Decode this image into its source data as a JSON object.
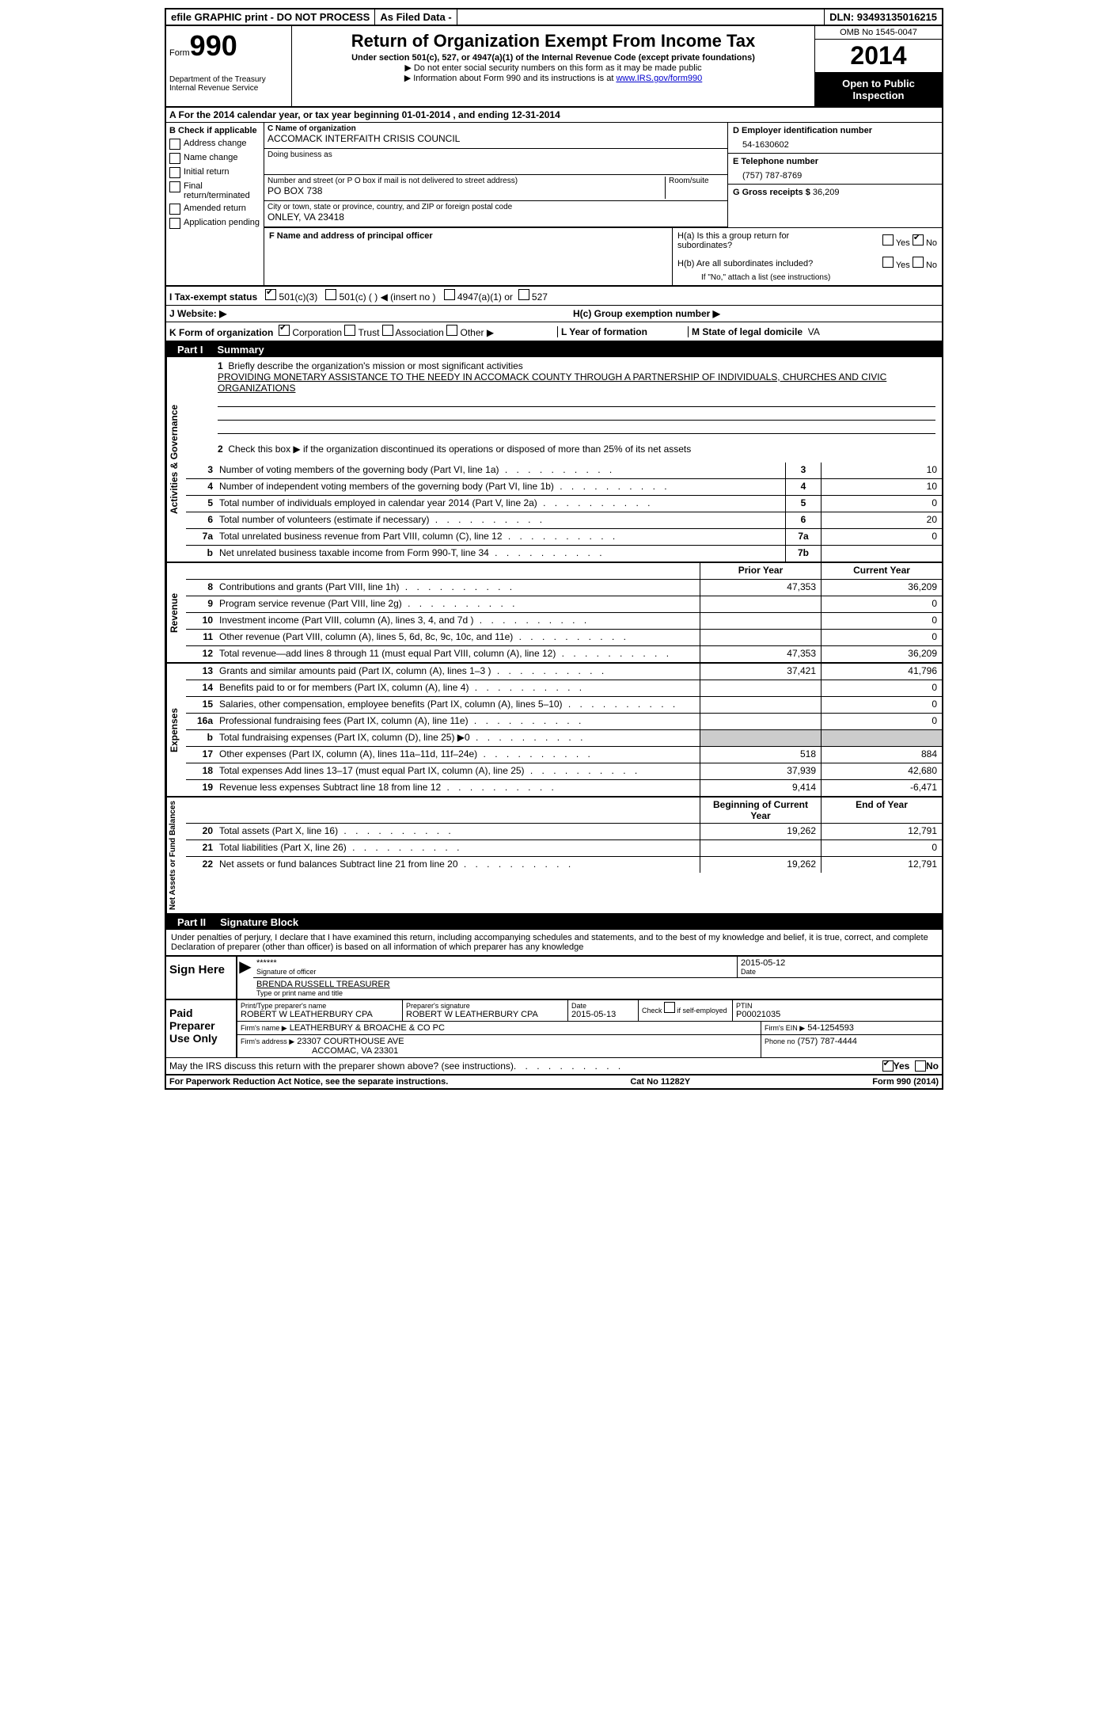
{
  "topbar": {
    "efile": "efile GRAPHIC print - DO NOT PROCESS",
    "asfiled": "As Filed Data -",
    "dln_label": "DLN:",
    "dln": "93493135016215"
  },
  "header": {
    "form_label": "Form",
    "form_num": "990",
    "dept1": "Department of the Treasury",
    "dept2": "Internal Revenue Service",
    "title": "Return of Organization Exempt From Income Tax",
    "subtitle": "Under section 501(c), 527, or 4947(a)(1) of the Internal Revenue Code (except private foundations)",
    "note1": "▶ Do not enter social security numbers on this form as it may be made public",
    "note2_pre": "▶ Information about Form 990 and its instructions is at ",
    "note2_link": "www.IRS.gov/form990",
    "omb": "OMB No 1545-0047",
    "year": "2014",
    "inspection": "Open to Public Inspection"
  },
  "sectionA": {
    "text": "A  For the 2014 calendar year, or tax year beginning 01-01-2014    , and ending 12-31-2014"
  },
  "colB": {
    "label": "B  Check if applicable",
    "items": [
      "Address change",
      "Name change",
      "Initial return",
      "Final return/terminated",
      "Amended return",
      "Application pending"
    ]
  },
  "colC": {
    "name_label": "C Name of organization",
    "name": "ACCOMACK INTERFAITH CRISIS COUNCIL",
    "dba_label": "Doing business as",
    "dba": "",
    "street_label": "Number and street (or P O  box if mail is not delivered to street address)",
    "room_label": "Room/suite",
    "street": "PO BOX 738",
    "city_label": "City or town, state or province, country, and ZIP or foreign postal code",
    "city": "ONLEY, VA  23418",
    "f_label": "F   Name and address of principal officer"
  },
  "colD": {
    "ein_label": "D Employer identification number",
    "ein": "54-1630602",
    "tel_label": "E Telephone number",
    "tel": "(757) 787-8769",
    "gross_label": "G Gross receipts $",
    "gross": "36,209"
  },
  "h": {
    "ha_label": "H(a)  Is this a group return for subordinates?",
    "hb_label": "H(b)  Are all subordinates included?",
    "hb_note": "If \"No,\" attach a list  (see instructions)",
    "hc_label": "H(c)   Group exemption number ▶",
    "yes": "Yes",
    "no": "No"
  },
  "i": {
    "label": "I   Tax-exempt status",
    "opt1": "501(c)(3)",
    "opt2": "501(c) (   ) ◀ (insert no )",
    "opt3": "4947(a)(1) or",
    "opt4": "527"
  },
  "j": {
    "label": "J   Website: ▶"
  },
  "k": {
    "label": "K Form of organization",
    "opts": [
      "Corporation",
      "Trust",
      "Association",
      "Other ▶"
    ],
    "l_label": "L Year of formation",
    "m_label": "M State of legal domicile",
    "m_val": "VA"
  },
  "part1": {
    "label": "Part I",
    "title": "Summary",
    "l1_label": "Briefly describe the organization's mission or most significant activities",
    "l1_text": "PROVIDING MONETARY ASSISTANCE TO THE NEEDY IN ACCOMACK COUNTY THROUGH A PARTNERSHIP OF INDIVIDUALS, CHURCHES AND CIVIC ORGANIZATIONS",
    "l2": "Check this box ▶      if the organization discontinued its operations or disposed of more than 25% of its net assets",
    "vtab1": "Activities & Governance",
    "vtab2": "Revenue",
    "vtab3": "Expenses",
    "vtab4": "Net Assets or Fund Balances",
    "lines_gov": [
      {
        "n": "3",
        "d": "Number of voting members of the governing body (Part VI, line 1a)",
        "box": "3",
        "v": "10"
      },
      {
        "n": "4",
        "d": "Number of independent voting members of the governing body (Part VI, line 1b)",
        "box": "4",
        "v": "10"
      },
      {
        "n": "5",
        "d": "Total number of individuals employed in calendar year 2014 (Part V, line 2a)",
        "box": "5",
        "v": "0"
      },
      {
        "n": "6",
        "d": "Total number of volunteers (estimate if necessary)",
        "box": "6",
        "v": "20"
      },
      {
        "n": "7a",
        "d": "Total unrelated business revenue from Part VIII, column (C), line 12",
        "box": "7a",
        "v": "0"
      },
      {
        "n": "b",
        "d": "Net unrelated business taxable income from Form 990-T, line 34",
        "box": "7b",
        "v": ""
      }
    ],
    "col_prior": "Prior Year",
    "col_curr": "Current Year",
    "lines_rev": [
      {
        "n": "8",
        "d": "Contributions and grants (Part VIII, line 1h)",
        "p": "47,353",
        "c": "36,209"
      },
      {
        "n": "9",
        "d": "Program service revenue (Part VIII, line 2g)",
        "p": "",
        "c": "0"
      },
      {
        "n": "10",
        "d": "Investment income (Part VIII, column (A), lines 3, 4, and 7d )",
        "p": "",
        "c": "0"
      },
      {
        "n": "11",
        "d": "Other revenue (Part VIII, column (A), lines 5, 6d, 8c, 9c, 10c, and 11e)",
        "p": "",
        "c": "0"
      },
      {
        "n": "12",
        "d": "Total revenue—add lines 8 through 11 (must equal Part VIII, column (A), line 12)",
        "p": "47,353",
        "c": "36,209"
      }
    ],
    "lines_exp": [
      {
        "n": "13",
        "d": "Grants and similar amounts paid (Part IX, column (A), lines 1–3 )",
        "p": "37,421",
        "c": "41,796"
      },
      {
        "n": "14",
        "d": "Benefits paid to or for members (Part IX, column (A), line 4)",
        "p": "",
        "c": "0"
      },
      {
        "n": "15",
        "d": "Salaries, other compensation, employee benefits (Part IX, column (A), lines 5–10)",
        "p": "",
        "c": "0"
      },
      {
        "n": "16a",
        "d": "Professional fundraising fees (Part IX, column (A), line 11e)",
        "p": "",
        "c": "0"
      },
      {
        "n": "b",
        "d": "Total fundraising expenses (Part IX, column (D), line 25) ▶0",
        "p": "shade",
        "c": "shade"
      },
      {
        "n": "17",
        "d": "Other expenses (Part IX, column (A), lines 11a–11d, 11f–24e)",
        "p": "518",
        "c": "884"
      },
      {
        "n": "18",
        "d": "Total expenses  Add lines 13–17 (must equal Part IX, column (A), line 25)",
        "p": "37,939",
        "c": "42,680"
      },
      {
        "n": "19",
        "d": "Revenue less expenses  Subtract line 18 from line 12",
        "p": "9,414",
        "c": "-6,471"
      }
    ],
    "col_begin": "Beginning of Current Year",
    "col_end": "End of Year",
    "lines_net": [
      {
        "n": "20",
        "d": "Total assets (Part X, line 16)",
        "p": "19,262",
        "c": "12,791"
      },
      {
        "n": "21",
        "d": "Total liabilities (Part X, line 26)",
        "p": "",
        "c": "0"
      },
      {
        "n": "22",
        "d": "Net assets or fund balances  Subtract line 21 from line 20",
        "p": "19,262",
        "c": "12,791"
      }
    ]
  },
  "part2": {
    "label": "Part II",
    "title": "Signature Block",
    "perjury": "Under penalties of perjury, I declare that I have examined this return, including accompanying schedules and statements, and to the best of my knowledge and belief, it is true, correct, and complete  Declaration of preparer (other than officer) is based on all information of which preparer has any knowledge",
    "sign_here": "Sign Here",
    "sig_stars": "******",
    "sig_officer_label": "Signature of officer",
    "sig_date": "2015-05-12",
    "date_label": "Date",
    "officer_name": "BRENDA RUSSELL TREASURER",
    "officer_label": "Type or print name and title",
    "paid": "Paid Preparer Use Only",
    "prep_name_label": "Print/Type preparer's name",
    "prep_name": "ROBERT W LEATHERBURY CPA",
    "prep_sig_label": "Preparer's signature",
    "prep_sig": "ROBERT W LEATHERBURY CPA",
    "prep_date_label": "Date",
    "prep_date": "2015-05-13",
    "self_emp": "Check        if self-employed",
    "ptin_label": "PTIN",
    "ptin": "P00021035",
    "firm_name_label": "Firm's name     ▶",
    "firm_name": "LEATHERBURY & BROACHE & CO PC",
    "firm_ein_label": "Firm's EIN ▶",
    "firm_ein": "54-1254593",
    "firm_addr_label": "Firm's address ▶",
    "firm_addr1": "23307 COURTHOUSE AVE",
    "firm_addr2": "ACCOMAC, VA  23301",
    "phone_label": "Phone no",
    "phone": "(757) 787-4444",
    "discuss": "May the IRS discuss this return with the preparer shown above? (see instructions)",
    "yes": "Yes",
    "no": "No"
  },
  "footer": {
    "left": "For Paperwork Reduction Act Notice, see the separate instructions.",
    "center": "Cat No 11282Y",
    "right": "Form 990 (2014)"
  }
}
